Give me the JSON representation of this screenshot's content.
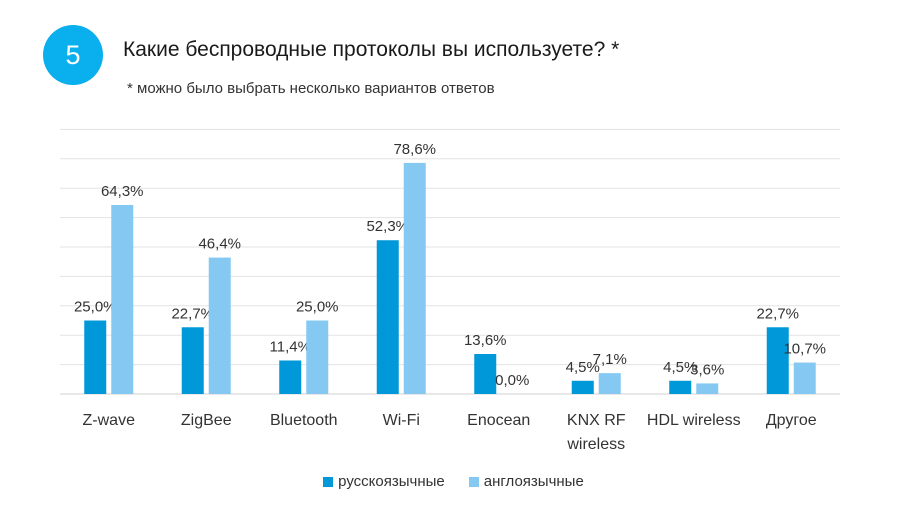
{
  "header": {
    "number": "5",
    "title": "Какие беспроводные протоколы вы используете? *",
    "note": "* можно было выбрать несколько вариантов ответов"
  },
  "colors": {
    "russian": "#0098D8",
    "english": "#85C8F2",
    "badge": "#0AAFEE"
  },
  "chart_data": {
    "type": "bar",
    "title": "Какие беспроводные протоколы вы используете?",
    "categories": [
      [
        "Z-wave"
      ],
      [
        "ZigBee"
      ],
      [
        "Bluetooth"
      ],
      [
        "Wi-Fi"
      ],
      [
        "Enocean"
      ],
      [
        "KNX RF",
        "wireless"
      ],
      [
        "HDL wireless"
      ],
      [
        "Другое"
      ]
    ],
    "series": [
      {
        "name": "русскоязычные",
        "values": [
          25.0,
          22.7,
          11.4,
          52.3,
          13.6,
          4.5,
          4.5,
          22.7
        ],
        "labels": [
          "25,0%",
          "22,7%",
          "11,4%",
          "52,3%",
          "13,6%",
          "4,5%",
          "4,5%",
          "22,7%"
        ]
      },
      {
        "name": "англоязычные",
        "values": [
          64.3,
          46.4,
          25.0,
          78.6,
          0.0,
          7.1,
          3.6,
          10.7
        ],
        "labels": [
          "64,3%",
          "46,4%",
          "25,0%",
          "78,6%",
          "0,0%",
          "7,1%",
          "3,6%",
          "10,7%"
        ]
      }
    ],
    "ylim": [
      0,
      90
    ],
    "grid": true,
    "legend_position": "bottom"
  }
}
